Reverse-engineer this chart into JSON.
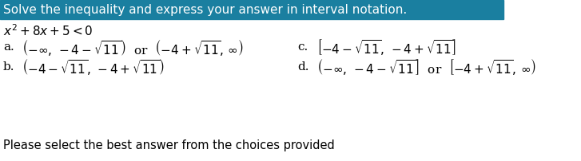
{
  "title": "Solve the inequality and express your answer in interval notation.",
  "title_bg": "#1a7fa0",
  "title_text_color": "#ffffff",
  "equation": "x² + 8x + 5 < 0",
  "option_a_label": "a.",
  "option_a": "(-∞, -4 - √11) or (-4 + √11, ∞)",
  "option_b_label": "b.",
  "option_b": "(-4 - √11, -4 + √11)",
  "option_c_label": "c.",
  "option_c": "[-4 - √11, -4 + √11]",
  "option_d_label": "d.",
  "option_d": "(-∞, -4 - √11] or [-4 + √11, ∞)",
  "footer": "Please select the best answer from the choices provided",
  "bg_color": "#ffffff",
  "text_color": "#000000",
  "font_size": 11,
  "title_font_size": 11
}
